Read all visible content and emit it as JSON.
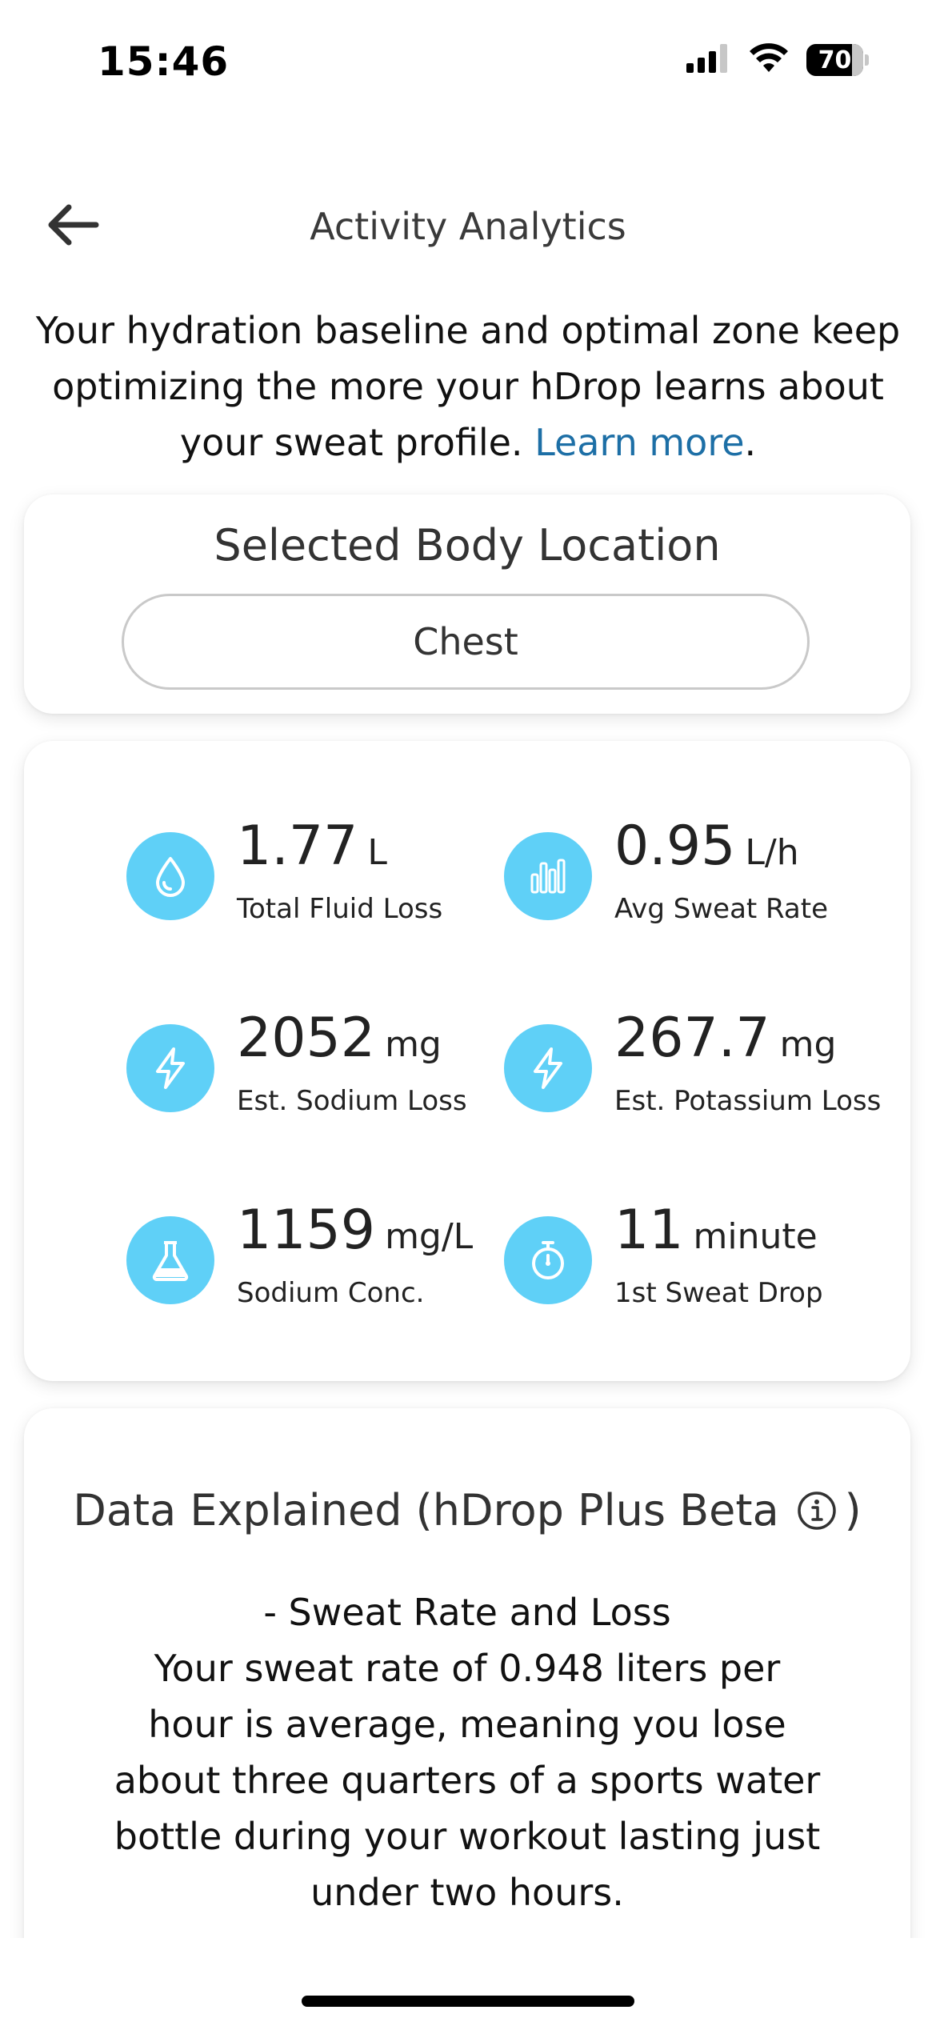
{
  "status_bar": {
    "time": "15:46",
    "battery": "70",
    "signal_icon": "cellular-signal-icon",
    "wifi_icon": "wifi-icon"
  },
  "header": {
    "title": "Activity Analytics",
    "back_icon": "arrow-left-icon"
  },
  "intro": {
    "text": "Your hydration baseline and optimal zone keep optimizing the more your hDrop learns about your sweat profile. ",
    "link": "Learn more",
    "trailing": "."
  },
  "location": {
    "title": "Selected Body Location",
    "value": "Chest"
  },
  "metrics": [
    {
      "value": "1.77",
      "unit": "L",
      "label": "Total Fluid Loss",
      "icon": "water-drop-icon"
    },
    {
      "value": "0.95",
      "unit": "L/h",
      "label": "Avg Sweat Rate",
      "icon": "bar-chart-icon"
    },
    {
      "value": "2052",
      "unit": "mg",
      "label": "Est. Sodium Loss",
      "icon": "lightning-icon"
    },
    {
      "value": "267.7",
      "unit": "mg",
      "label": "Est. Potassium Loss",
      "icon": "lightning-icon"
    },
    {
      "value": "1159",
      "unit": "mg/L",
      "label": "Sodium Conc.",
      "icon": "flask-icon"
    },
    {
      "value": "11",
      "unit": "minute",
      "label": "1st Sweat Drop",
      "icon": "stopwatch-icon"
    }
  ],
  "explained": {
    "title_prefix": "Data Explained (hDrop Plus Beta",
    "title_suffix": ")",
    "info_icon": "info-circle-icon",
    "heading": "- Sweat Rate and Loss",
    "body": "Your sweat rate of 0.948 liters per hour is average, meaning you lose about three quarters of a sports water bottle during your workout lasting just under two hours."
  },
  "colors": {
    "accent_icon_bg": "#5fd0f7",
    "link": "#1d6fa6"
  }
}
